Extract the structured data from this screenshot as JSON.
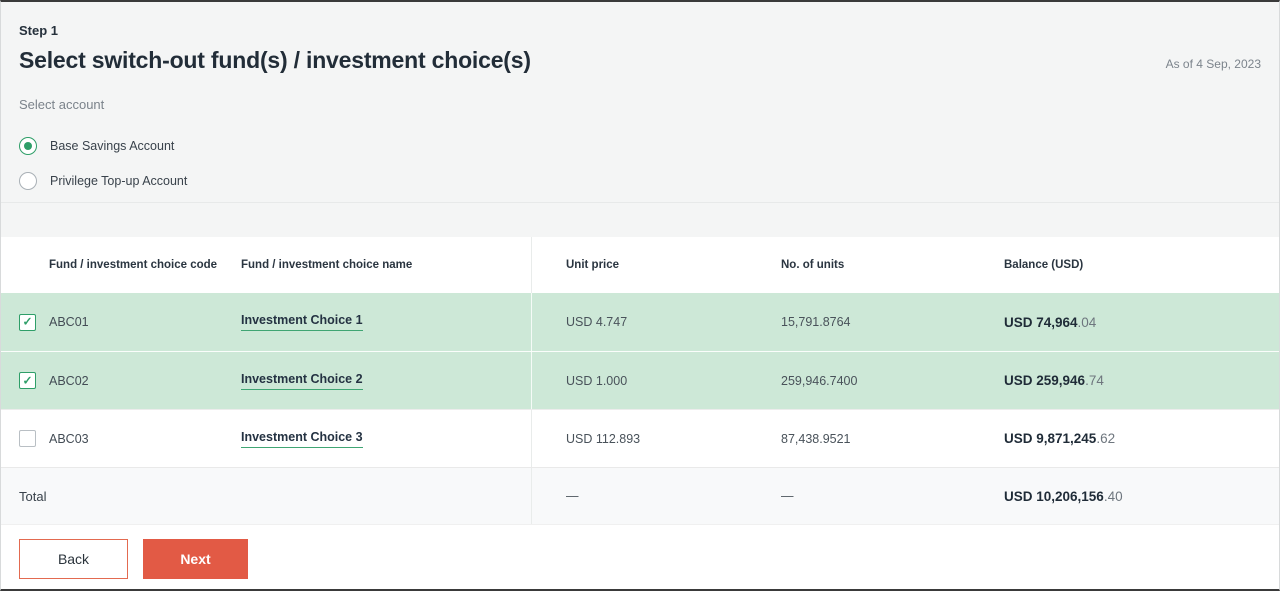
{
  "page": {
    "step": "Step 1",
    "title": "Select switch-out fund(s) / investment choice(s)",
    "as_of": "As of 4 Sep, 2023",
    "select_account_label": "Select account"
  },
  "accounts": [
    {
      "label": "Base Savings Account",
      "selected": true
    },
    {
      "label": "Privilege Top-up Account",
      "selected": false
    }
  ],
  "icons": {
    "check": "✓",
    "radio_selected": "radio-selected-icon",
    "radio_unselected": "radio-unselected-icon"
  },
  "table": {
    "headers": {
      "code": "Fund / investment choice code",
      "name": "Fund / investment choice name",
      "unit_price": "Unit price",
      "units": "No. of units",
      "balance": "Balance (USD)"
    },
    "rows": [
      {
        "checked": true,
        "code": "ABC01",
        "name": "Investment Choice 1",
        "unit_price": "USD 4.747",
        "units": "15,791.8764",
        "balance_main": "USD 74,964",
        "balance_decimal": ".04"
      },
      {
        "checked": true,
        "code": "ABC02",
        "name": "Investment Choice 2",
        "unit_price": "USD 1.000",
        "units": "259,946.7400",
        "balance_main": "USD 259,946",
        "balance_decimal": ".74"
      },
      {
        "checked": false,
        "code": "ABC03",
        "name": "Investment Choice 3",
        "unit_price": "USD 112.893",
        "units": "87,438.9521",
        "balance_main": "USD 9,871,245",
        "balance_decimal": ".62"
      }
    ],
    "total": {
      "label": "Total",
      "unit_price": "—",
      "units": "—",
      "balance_main": "USD 10,206,156",
      "balance_decimal": ".40"
    }
  },
  "footer": {
    "back_label": "Back",
    "next_label": "Next"
  },
  "colors": {
    "accent_green": "#2e9e68",
    "row_highlight_green": "#cde8d7",
    "button_red": "#e25a45",
    "dark_text": "#222d38"
  }
}
